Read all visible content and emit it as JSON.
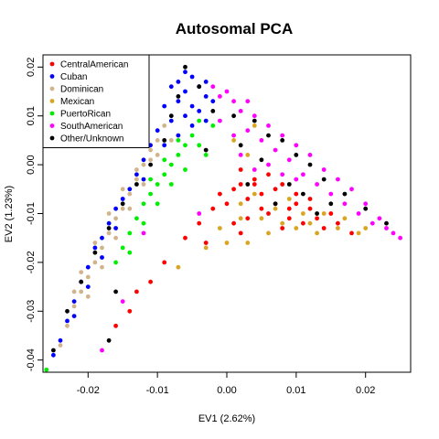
{
  "chart_data": {
    "type": "scatter",
    "title": "Autosomal PCA",
    "xlabel": "EV1 (2.62%)",
    "ylabel": "EV2 (1.23%)",
    "xlim": [
      -0.0265,
      0.0265
    ],
    "ylim": [
      -0.0425,
      0.0225
    ],
    "xticks": [
      -0.02,
      -0.01,
      0.0,
      0.01,
      0.02
    ],
    "xtick_labels": [
      "-0.02",
      "-0.01",
      "0.00",
      "0.01",
      "0.02"
    ],
    "yticks": [
      -0.04,
      -0.03,
      -0.02,
      -0.01,
      0.0,
      0.01,
      0.02
    ],
    "ytick_labels": [
      "-0.04",
      "-0.03",
      "-0.02",
      "-0.01",
      "0.00",
      "0.01",
      "0.02"
    ],
    "grid": false,
    "legend_position": "top-left",
    "series": [
      {
        "name": "CentralAmerican",
        "color": "#ff0000",
        "points": [
          [
            0.001,
            -0.005
          ],
          [
            0.003,
            -0.007
          ],
          [
            0.005,
            -0.006
          ],
          [
            0.007,
            -0.008
          ],
          [
            0.008,
            -0.004
          ],
          [
            0.01,
            -0.006
          ],
          [
            0.012,
            -0.009
          ],
          [
            0.004,
            -0.003
          ],
          [
            0.002,
            -0.001
          ],
          [
            0.006,
            -0.01
          ],
          [
            0.009,
            -0.011
          ],
          [
            0.011,
            -0.012
          ],
          [
            0.013,
            -0.011
          ],
          [
            0.015,
            -0.01
          ],
          [
            0.0,
            -0.008
          ],
          [
            -0.002,
            -0.009
          ],
          [
            0.001,
            -0.012
          ],
          [
            0.003,
            -0.011
          ],
          [
            -0.004,
            -0.012
          ],
          [
            -0.003,
            -0.016
          ],
          [
            0.002,
            -0.014
          ],
          [
            -0.006,
            -0.015
          ],
          [
            -0.009,
            -0.02
          ],
          [
            -0.011,
            -0.024
          ],
          [
            -0.013,
            -0.026
          ],
          [
            -0.016,
            -0.033
          ],
          [
            -0.014,
            -0.03
          ],
          [
            0.004,
            -0.004
          ],
          [
            0.006,
            -0.002
          ],
          [
            0.007,
            -0.005
          ],
          [
            0.01,
            -0.008
          ],
          [
            0.014,
            -0.013
          ],
          [
            0.016,
            -0.012
          ],
          [
            0.008,
            -0.013
          ],
          [
            0.005,
            -0.009
          ],
          [
            -0.001,
            -0.006
          ],
          [
            0.002,
            -0.004
          ],
          [
            0.009,
            -0.009
          ],
          [
            0.012,
            -0.007
          ],
          [
            0.018,
            -0.014
          ]
        ]
      },
      {
        "name": "Cuban",
        "color": "#0000ff",
        "points": [
          [
            -0.006,
            0.019
          ],
          [
            -0.007,
            0.017
          ],
          [
            -0.005,
            0.018
          ],
          [
            -0.006,
            0.015
          ],
          [
            -0.004,
            0.016
          ],
          [
            -0.008,
            0.016
          ],
          [
            -0.007,
            0.013
          ],
          [
            -0.005,
            0.012
          ],
          [
            -0.003,
            0.014
          ],
          [
            -0.009,
            0.012
          ],
          [
            -0.006,
            0.01
          ],
          [
            -0.008,
            0.009
          ],
          [
            -0.004,
            0.011
          ],
          [
            -0.01,
            0.007
          ],
          [
            -0.011,
            0.004
          ],
          [
            -0.012,
            0.001
          ],
          [
            -0.013,
            -0.002
          ],
          [
            -0.014,
            -0.005
          ],
          [
            -0.016,
            -0.009
          ],
          [
            -0.017,
            -0.012
          ],
          [
            -0.019,
            -0.017
          ],
          [
            -0.02,
            -0.021
          ],
          [
            -0.021,
            -0.024
          ],
          [
            -0.022,
            -0.028
          ],
          [
            -0.023,
            -0.032
          ],
          [
            -0.024,
            -0.036
          ],
          [
            -0.025,
            -0.039
          ],
          [
            -0.015,
            -0.007
          ],
          [
            -0.018,
            -0.015
          ],
          [
            -0.012,
            -0.003
          ],
          [
            -0.002,
            0.013
          ],
          [
            -0.005,
            0.008
          ],
          [
            -0.007,
            0.006
          ],
          [
            -0.003,
            0.009
          ],
          [
            -0.009,
            0.004
          ],
          [
            -0.018,
            -0.019
          ],
          [
            -0.016,
            -0.013
          ],
          [
            -0.02,
            -0.025
          ],
          [
            -0.022,
            -0.031
          ],
          [
            -0.003,
            0.017
          ]
        ]
      },
      {
        "name": "Dominican",
        "color": "#d2b48c",
        "points": [
          [
            -0.009,
            0.008
          ],
          [
            -0.01,
            0.005
          ],
          [
            -0.011,
            0.003
          ],
          [
            -0.012,
            0.0
          ],
          [
            -0.013,
            -0.003
          ],
          [
            -0.014,
            -0.006
          ],
          [
            -0.015,
            -0.009
          ],
          [
            -0.016,
            -0.011
          ],
          [
            -0.017,
            -0.014
          ],
          [
            -0.018,
            -0.017
          ],
          [
            -0.019,
            -0.02
          ],
          [
            -0.02,
            -0.023
          ],
          [
            -0.021,
            -0.026
          ],
          [
            -0.022,
            -0.029
          ],
          [
            -0.023,
            -0.033
          ],
          [
            -0.024,
            -0.037
          ],
          [
            -0.013,
            -0.001
          ],
          [
            -0.015,
            -0.005
          ],
          [
            -0.017,
            -0.01
          ],
          [
            -0.019,
            -0.016
          ],
          [
            -0.021,
            -0.022
          ],
          [
            -0.022,
            -0.026
          ],
          [
            -0.008,
            0.005
          ],
          [
            -0.012,
            -0.004
          ],
          [
            -0.016,
            -0.015
          ],
          [
            -0.02,
            -0.027
          ],
          [
            -0.014,
            -0.009
          ],
          [
            -0.018,
            -0.021
          ],
          [
            -0.011,
            0.001
          ],
          [
            -0.01,
            0.002
          ]
        ]
      },
      {
        "name": "Mexican",
        "color": "#daa520",
        "points": [
          [
            0.002,
            -0.008
          ],
          [
            0.005,
            -0.011
          ],
          [
            0.008,
            -0.012
          ],
          [
            0.01,
            -0.013
          ],
          [
            0.013,
            -0.014
          ],
          [
            0.016,
            -0.013
          ],
          [
            0.019,
            -0.014
          ],
          [
            0.006,
            -0.014
          ],
          [
            0.003,
            -0.016
          ],
          [
            0.0,
            -0.016
          ],
          [
            -0.003,
            -0.017
          ],
          [
            -0.007,
            -0.021
          ],
          [
            0.011,
            -0.01
          ],
          [
            0.014,
            -0.01
          ],
          [
            0.004,
            -0.006
          ],
          [
            0.007,
            -0.009
          ],
          [
            0.009,
            -0.007
          ],
          [
            0.017,
            -0.011
          ],
          [
            0.02,
            -0.013
          ],
          [
            0.012,
            -0.012
          ],
          [
            0.002,
            -0.011
          ],
          [
            -0.001,
            -0.013
          ],
          [
            0.003,
            0.002
          ],
          [
            0.001,
            0.005
          ],
          [
            0.004,
            0.008
          ]
        ]
      },
      {
        "name": "PuertoRican",
        "color": "#00ee00",
        "points": [
          [
            -0.005,
            0.006
          ],
          [
            -0.006,
            0.004
          ],
          [
            -0.007,
            0.002
          ],
          [
            -0.008,
            0.0
          ],
          [
            -0.009,
            -0.002
          ],
          [
            -0.01,
            -0.004
          ],
          [
            -0.011,
            -0.006
          ],
          [
            -0.012,
            -0.008
          ],
          [
            -0.013,
            -0.011
          ],
          [
            -0.014,
            -0.014
          ],
          [
            -0.015,
            -0.017
          ],
          [
            -0.016,
            -0.02
          ],
          [
            -0.004,
            0.004
          ],
          [
            -0.003,
            0.002
          ],
          [
            -0.006,
            -0.001
          ],
          [
            -0.008,
            -0.004
          ],
          [
            -0.01,
            -0.008
          ],
          [
            -0.012,
            -0.012
          ],
          [
            -0.014,
            -0.018
          ],
          [
            -0.026,
            -0.042
          ],
          [
            -0.002,
            0.008
          ],
          [
            -0.004,
            0.009
          ],
          [
            -0.007,
            0.005
          ],
          [
            -0.009,
            0.001
          ],
          [
            -0.011,
            -0.003
          ]
        ]
      },
      {
        "name": "SouthAmerican",
        "color": "#ff00ff",
        "points": [
          [
            -0.002,
            0.016
          ],
          [
            -0.001,
            0.014
          ],
          [
            0.001,
            0.013
          ],
          [
            0.002,
            0.011
          ],
          [
            0.004,
            0.01
          ],
          [
            0.006,
            0.008
          ],
          [
            0.008,
            0.006
          ],
          [
            0.01,
            0.004
          ],
          [
            0.012,
            0.002
          ],
          [
            0.014,
            -0.001
          ],
          [
            0.016,
            -0.003
          ],
          [
            0.018,
            -0.005
          ],
          [
            0.02,
            -0.008
          ],
          [
            0.022,
            -0.011
          ],
          [
            0.024,
            -0.014
          ],
          [
            0.025,
            -0.015
          ],
          [
            0.003,
            0.007
          ],
          [
            0.005,
            0.005
          ],
          [
            0.007,
            0.003
          ],
          [
            0.009,
            0.001
          ],
          [
            0.011,
            -0.002
          ],
          [
            0.013,
            -0.004
          ],
          [
            0.015,
            -0.006
          ],
          [
            0.017,
            -0.008
          ],
          [
            0.019,
            -0.01
          ],
          [
            0.021,
            -0.012
          ],
          [
            0.023,
            -0.013
          ],
          [
            -0.001,
            0.009
          ],
          [
            0.001,
            0.006
          ],
          [
            0.002,
            0.002
          ],
          [
            0.004,
            -0.001
          ],
          [
            0.006,
            0.0
          ],
          [
            0.008,
            -0.002
          ],
          [
            0.01,
            -0.003
          ],
          [
            -0.012,
            -0.014
          ],
          [
            -0.015,
            -0.028
          ],
          [
            -0.004,
            -0.01
          ],
          [
            -0.018,
            -0.038
          ],
          [
            0.0,
            0.015
          ],
          [
            0.003,
            0.013
          ]
        ]
      },
      {
        "name": "Other/Unknown",
        "color": "#000000",
        "points": [
          [
            -0.006,
            0.02
          ],
          [
            -0.004,
            0.016
          ],
          [
            -0.007,
            0.014
          ],
          [
            -0.002,
            0.011
          ],
          [
            0.001,
            0.01
          ],
          [
            0.004,
            0.009
          ],
          [
            0.006,
            0.006
          ],
          [
            0.008,
            0.005
          ],
          [
            0.01,
            0.002
          ],
          [
            0.012,
            0.0
          ],
          [
            0.014,
            -0.003
          ],
          [
            0.017,
            -0.006
          ],
          [
            0.02,
            -0.009
          ],
          [
            0.023,
            -0.012
          ],
          [
            -0.009,
            0.005
          ],
          [
            -0.011,
            0.0
          ],
          [
            -0.013,
            -0.004
          ],
          [
            -0.015,
            -0.008
          ],
          [
            -0.017,
            -0.013
          ],
          [
            -0.019,
            -0.018
          ],
          [
            -0.021,
            -0.024
          ],
          [
            -0.023,
            -0.03
          ],
          [
            -0.025,
            -0.038
          ],
          [
            -0.016,
            -0.026
          ],
          [
            -0.017,
            -0.036
          ],
          [
            0.003,
            -0.004
          ],
          [
            0.007,
            -0.008
          ],
          [
            0.011,
            -0.006
          ],
          [
            0.015,
            -0.008
          ],
          [
            0.002,
            0.004
          ],
          [
            -0.003,
            0.003
          ],
          [
            -0.008,
            0.01
          ],
          [
            0.005,
            0.001
          ],
          [
            0.009,
            -0.004
          ],
          [
            0.013,
            -0.01
          ]
        ]
      }
    ]
  }
}
